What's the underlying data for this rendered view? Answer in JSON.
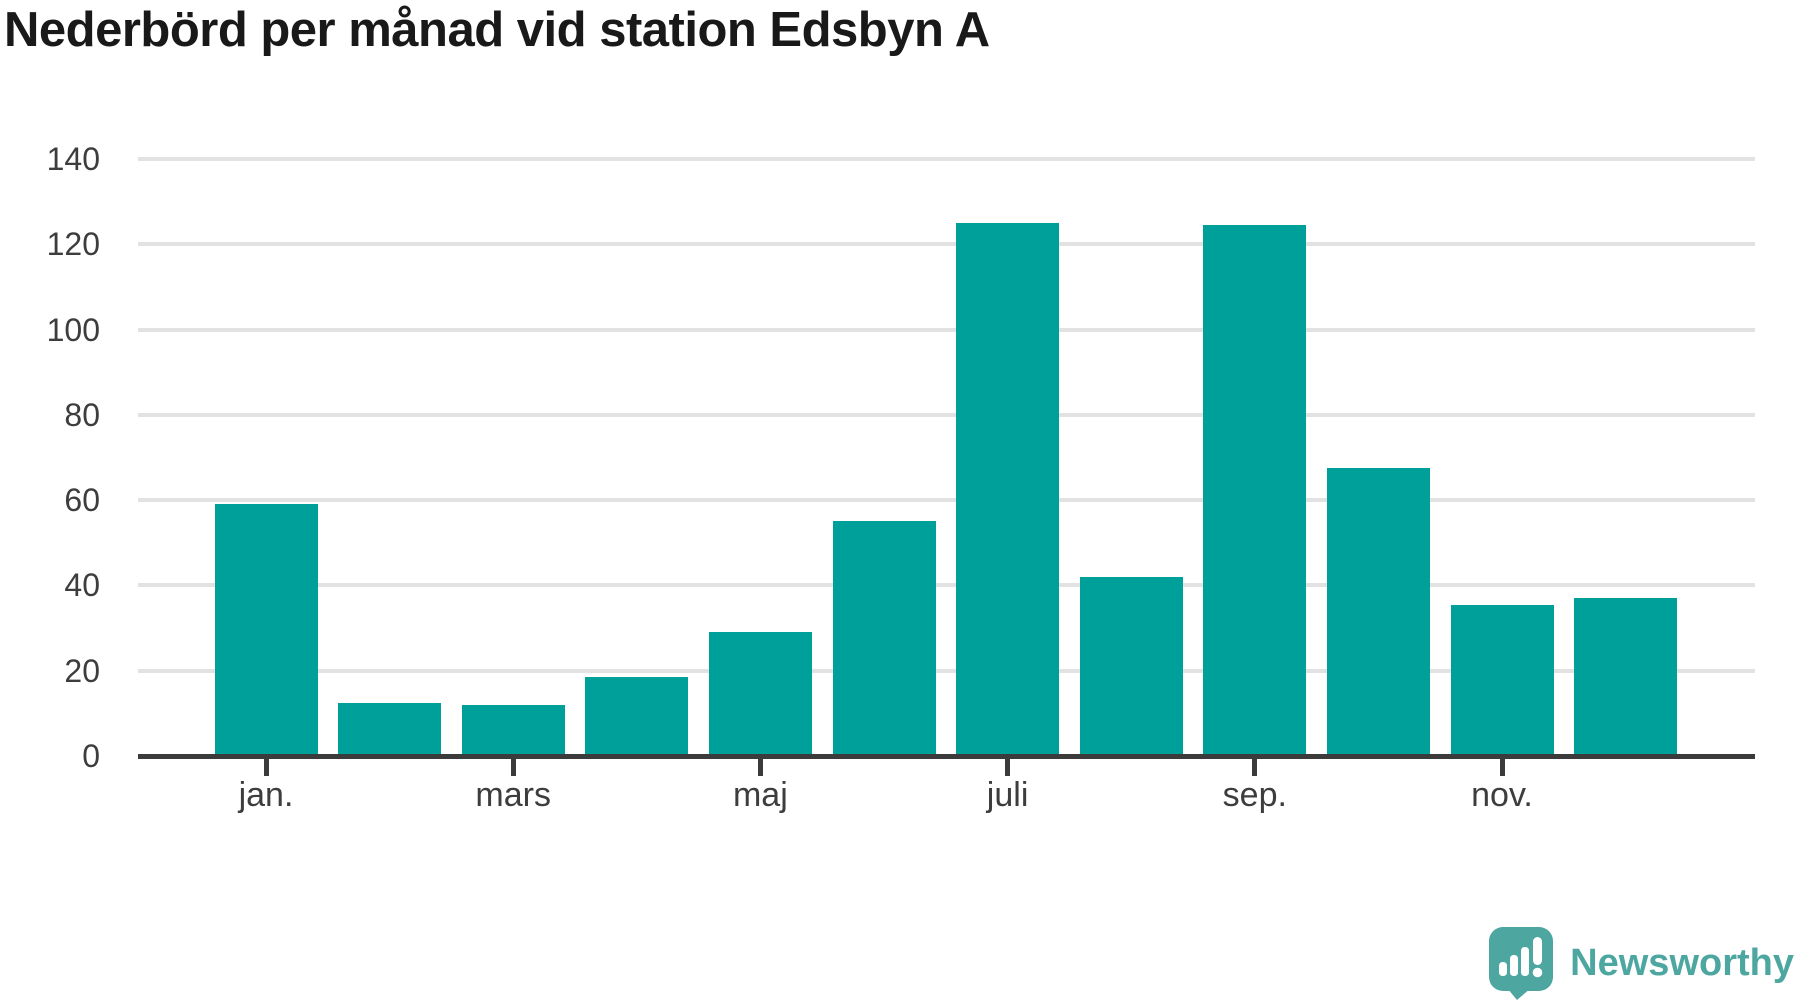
{
  "title": "Nederbörd per månad vid station Edsbyn A",
  "brand": {
    "name": "Newsworthy",
    "icon": "speech-bubble-bar-chart-icon",
    "color": "#4da7a0"
  },
  "colors": {
    "bar": "#00a09a",
    "title_text": "#191919",
    "axis_text": "#3d3d3d",
    "gridline": "#e2e2e2",
    "axis_line": "#3b3b3b",
    "background": "#ffffff"
  },
  "chart_data": {
    "type": "bar",
    "title": "Nederbörd per månad vid station Edsbyn A",
    "n_bars": 12,
    "values": [
      59,
      12.5,
      12,
      18.5,
      29,
      55,
      125,
      42,
      124.5,
      67.5,
      35.5,
      37
    ],
    "x_ticks": [
      {
        "bar_index": 0,
        "label": "jan."
      },
      {
        "bar_index": 2,
        "label": "mars"
      },
      {
        "bar_index": 4,
        "label": "maj"
      },
      {
        "bar_index": 6,
        "label": "juli"
      },
      {
        "bar_index": 8,
        "label": "sep."
      },
      {
        "bar_index": 10,
        "label": "nov."
      }
    ],
    "y_ticks": [
      0,
      20,
      40,
      60,
      80,
      100,
      120,
      140
    ],
    "ylim": [
      0,
      140
    ],
    "xlabel": "",
    "ylabel": "",
    "grid": "horizontal-only",
    "legend": "none"
  }
}
